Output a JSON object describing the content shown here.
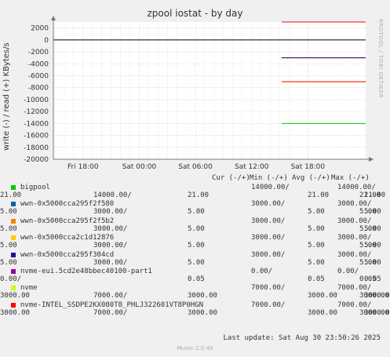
{
  "chart_data": {
    "type": "line",
    "title": "zpool iostat - by day",
    "ylabel": "write (-) / read (+) KBytes/s",
    "side_label": "RRDTOOL / TOBI OETIKER",
    "ylim": [
      -20000,
      3000
    ],
    "yticks": [
      2000,
      0,
      -2000,
      -4000,
      -6000,
      -8000,
      -10000,
      -12000,
      -14000,
      -16000,
      -18000,
      -20000
    ],
    "xticks": [
      "Fri 18:00",
      "Sat 00:00",
      "Sat 06:00",
      "Sat 12:00",
      "Sat 18:00"
    ],
    "grid": true,
    "series": [
      {
        "name": "bigpool",
        "color": "#00cc00",
        "write": -14000,
        "read": 21
      },
      {
        "name": "wwn-0x5000cca295f2f580",
        "color": "#0066b3",
        "write": -3000,
        "read": 5
      },
      {
        "name": "wwn-0x5000cca295f2f5b2",
        "color": "#ff8000",
        "write": -3000,
        "read": 5
      },
      {
        "name": "wwn-0x5000cca2c1d12876",
        "color": "#ffcc00",
        "write": -3000,
        "read": 5
      },
      {
        "name": "wwn-0x5000cca295f304cd",
        "color": "#330099",
        "write": -3000,
        "read": 5
      },
      {
        "name": "nvme-eui.5cd2e48bbec40100-part1",
        "color": "#990099",
        "write": 0,
        "read": 0.05
      },
      {
        "name": "nvme",
        "color": "#ccff00",
        "write": -7000,
        "read": 3000
      },
      {
        "name": "nvme-INTEL_SSDPE2KX080T8_PHLJ322601VT8P0HGN",
        "color": "#ff0000",
        "write": -7000,
        "read": 3000
      }
    ]
  },
  "legend": {
    "header": {
      "cur": "Cur (-/+)",
      "min": "Min (-/+)",
      "avg": "Avg (-/+)",
      "max": "Max (-/+)"
    },
    "rows": [
      {
        "name": "bigpool",
        "line2": " 21.00",
        "cur": "14000.00/",
        "cur2": "21.00",
        "min": "14000.00/",
        "min2": "21.00",
        "avg": "21.00",
        "max": "14000.00/",
        "max2": "21.00"
      },
      {
        "name": "wwn-0x5000cca295f2f580",
        "line2": " 5.00",
        "cur": "3000.00/",
        "cur2": "5.00",
        "min": "3000.00/",
        "min2": "5.00",
        "avg": "5.00",
        "max": "3000.00/",
        "max2": "5.00"
      },
      {
        "name": "wwn-0x5000cca295f2f5b2",
        "line2": " 5.00",
        "cur": "3000.00/",
        "cur2": "5.00",
        "min": "3000.00/",
        "min2": "5.00",
        "avg": "5.00",
        "max": "3000.00/",
        "max2": "5.00"
      },
      {
        "name": "wwn-0x5000cca2c1d12876",
        "line2": " 5.00",
        "cur": "3000.00/",
        "cur2": "5.00",
        "min": "3000.00/",
        "min2": "5.00",
        "avg": "5.00",
        "max": "3000.00/",
        "max2": "5.00"
      },
      {
        "name": "wwn-0x5000cca295f304cd",
        "line2": " 5.00",
        "cur": "3000.00/",
        "cur2": "5.00",
        "min": "3000.00/",
        "min2": "5.00",
        "avg": "5.00",
        "max": "3000.00/",
        "max2": "5.00"
      },
      {
        "name": "nvme-eui.5cd2e48bbec40100-part1",
        "line2": " 0.00/",
        "cur": "",
        "cur2": "0.05",
        "min": "0.00/",
        "min2": "0.05",
        "avg": "0.05",
        "max": "0.00/",
        "max2": "0.05"
      },
      {
        "name": "nvme",
        "line2": "3000.00",
        "cur": "7000.00/",
        "cur2": "3000.00",
        "min": "7000.00/",
        "min2": "3000.00",
        "avg": "3000.00",
        "max": "7000.00/",
        "max2": "3000.00"
      },
      {
        "name": "nvme-INTEL_SSDPE2KX080T8_PHLJ322601VT8P0HGN",
        "line2": "3000.00",
        "cur": "7000.00/",
        "cur2": "3000.00",
        "min": "7000.00/",
        "min2": "3000.00",
        "avg": "3000.00",
        "max": "7000.00/",
        "max2": "3000.00"
      }
    ]
  },
  "footer": "Last update: Sat Aug 30 23:50:26 2025",
  "munin": "Munin 2.0.49"
}
